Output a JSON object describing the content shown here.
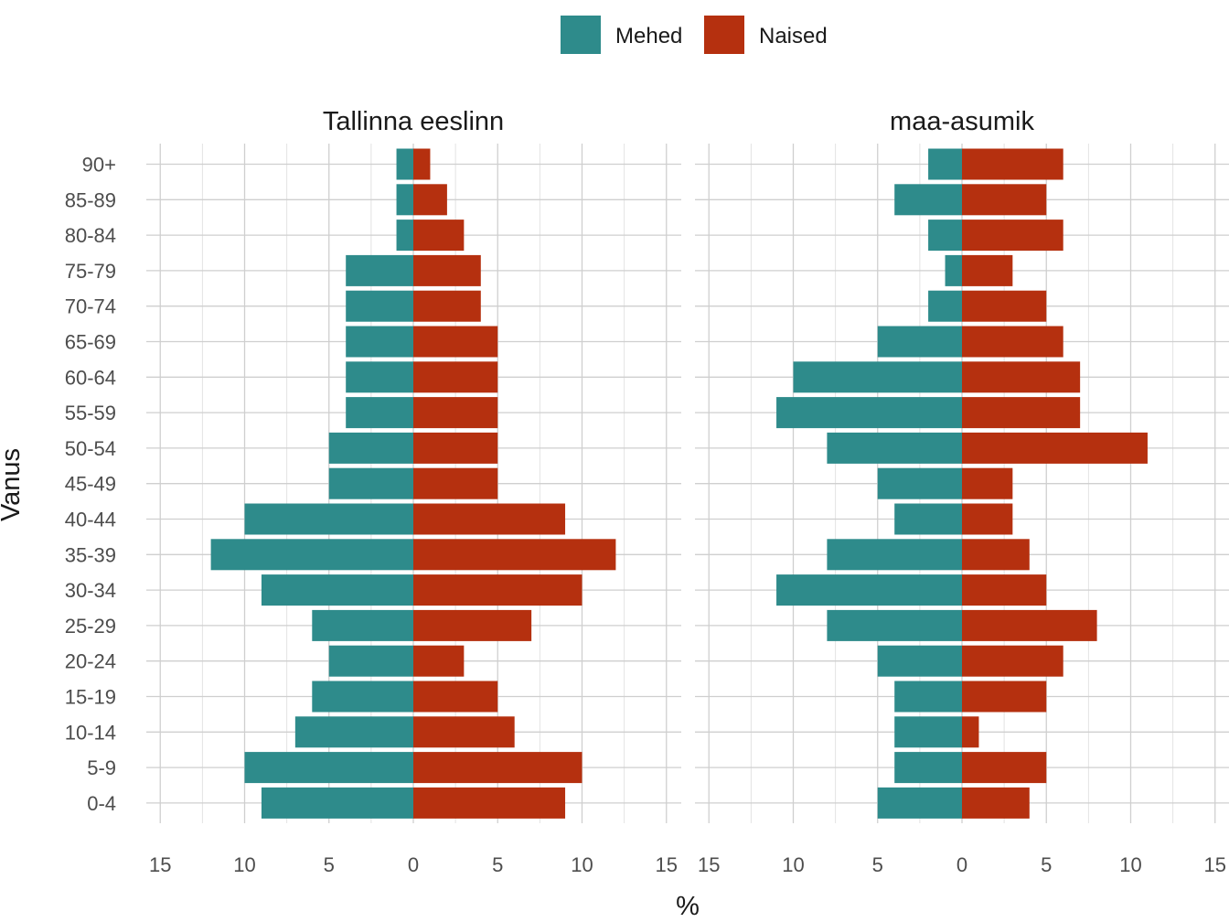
{
  "chart_data": {
    "type": "bar",
    "orientation": "horizontal",
    "subtype": "population-pyramid",
    "xlabel": "%",
    "ylabel": "Vanus",
    "categories": [
      "0-4",
      "5-9",
      "10-14",
      "15-19",
      "20-24",
      "25-29",
      "30-34",
      "35-39",
      "40-44",
      "45-49",
      "50-54",
      "55-59",
      "60-64",
      "65-69",
      "70-74",
      "75-79",
      "80-84",
      "85-89",
      "90+"
    ],
    "xticks": [
      15,
      10,
      5,
      0,
      5,
      10,
      15
    ],
    "xlim": [
      -16,
      16
    ],
    "grid": true,
    "legend": {
      "position": "top",
      "entries": [
        {
          "name": "Mehed",
          "color": "#2E8B8B"
        },
        {
          "name": "Naised",
          "color": "#B5300F"
        }
      ]
    },
    "panels": [
      {
        "title": "Tallinna eeslinn",
        "series": [
          {
            "name": "Mehed",
            "values": [
              9,
              10,
              7,
              6,
              5,
              6,
              9,
              12,
              10,
              5,
              5,
              4,
              4,
              4,
              4,
              4,
              1,
              1,
              1
            ]
          },
          {
            "name": "Naised",
            "values": [
              9,
              10,
              6,
              5,
              3,
              7,
              10,
              12,
              9,
              5,
              5,
              5,
              5,
              5,
              4,
              4,
              3,
              2,
              1
            ]
          }
        ]
      },
      {
        "title": "maa-asumik",
        "series": [
          {
            "name": "Mehed",
            "values": [
              5,
              4,
              4,
              4,
              5,
              8,
              11,
              8,
              4,
              5,
              8,
              11,
              10,
              5,
              2,
              1,
              2,
              4,
              2
            ]
          },
          {
            "name": "Naised",
            "values": [
              4,
              5,
              1,
              5,
              6,
              8,
              5,
              4,
              3,
              3,
              11,
              7,
              7,
              6,
              5,
              3,
              6,
              5,
              6
            ]
          }
        ]
      }
    ]
  }
}
